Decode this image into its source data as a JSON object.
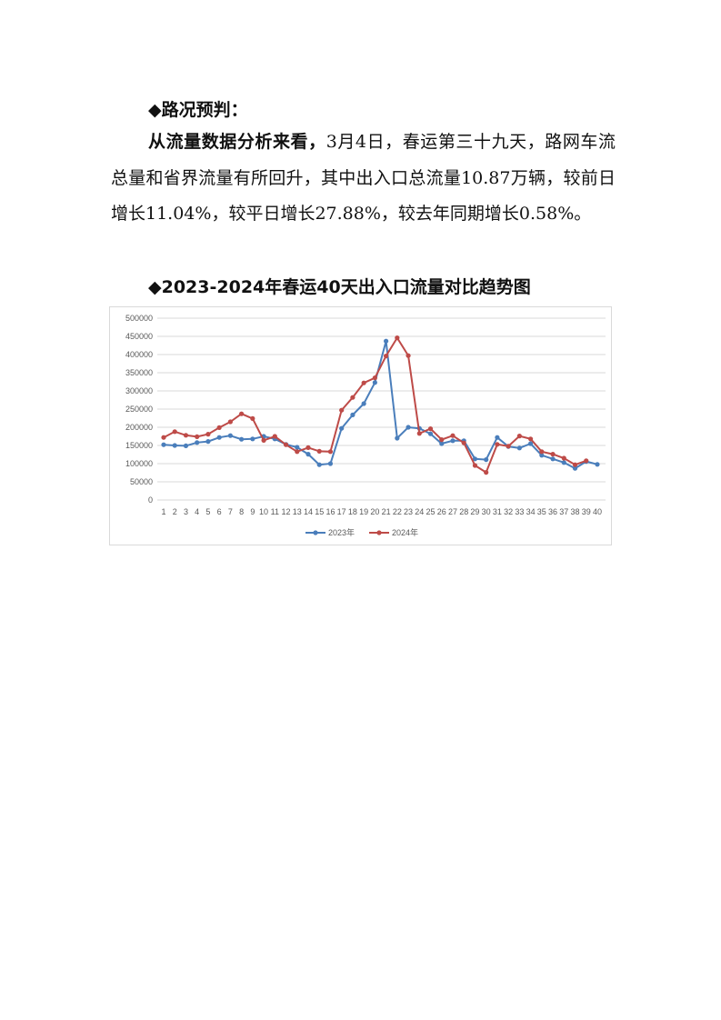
{
  "section_title": "◆路况预判：",
  "paragraph": {
    "lead": "从流量数据分析来看，",
    "body": "3月4日，春运第三十九天，路网车流总量和省界流量有所回升，其中出入口总流量10.87万辆，较前日增长11.04%，较平日增长27.88%，较去年同期增长0.58%。"
  },
  "chart_title": "◆2023-2024年春运40天出入口流量对比趋势图",
  "chart_data": {
    "type": "line",
    "title": "",
    "xlabel": "",
    "ylabel": "",
    "ylim": [
      0,
      500000
    ],
    "yticks": [
      0,
      50000,
      100000,
      150000,
      200000,
      250000,
      300000,
      350000,
      400000,
      450000,
      500000
    ],
    "categories": [
      "1",
      "2",
      "3",
      "4",
      "5",
      "6",
      "7",
      "8",
      "9",
      "10",
      "11",
      "12",
      "13",
      "14",
      "15",
      "16",
      "17",
      "18",
      "19",
      "20",
      "21",
      "22",
      "23",
      "24",
      "25",
      "26",
      "27",
      "28",
      "29",
      "30",
      "31",
      "32",
      "33",
      "34",
      "35",
      "36",
      "37",
      "38",
      "39",
      "40"
    ],
    "grid": "horizontal",
    "legend": "bottom",
    "series": [
      {
        "name": "2023年",
        "color": "#4a7ebb",
        "values": [
          152000,
          150000,
          149000,
          158000,
          161000,
          172000,
          177000,
          167000,
          168000,
          175000,
          168000,
          153000,
          145000,
          126000,
          97000,
          100000,
          197000,
          234000,
          265000,
          323000,
          437000,
          170000,
          200000,
          197000,
          182000,
          155000,
          163000,
          163000,
          113000,
          111000,
          172000,
          147000,
          143000,
          155000,
          123000,
          113000,
          103000,
          87000,
          106000,
          98000
        ]
      },
      {
        "name": "2024年",
        "color": "#be4b48",
        "values": [
          172000,
          188000,
          178000,
          174000,
          181000,
          199000,
          215000,
          237000,
          224000,
          164000,
          175000,
          152000,
          133000,
          144000,
          134000,
          133000,
          247000,
          282000,
          322000,
          336000,
          396000,
          446000,
          397000,
          183000,
          196000,
          166000,
          177000,
          157000,
          95000,
          76000,
          153000,
          148000,
          176000,
          168000,
          133000,
          126000,
          115000,
          97000,
          108000,
          null
        ]
      }
    ]
  }
}
